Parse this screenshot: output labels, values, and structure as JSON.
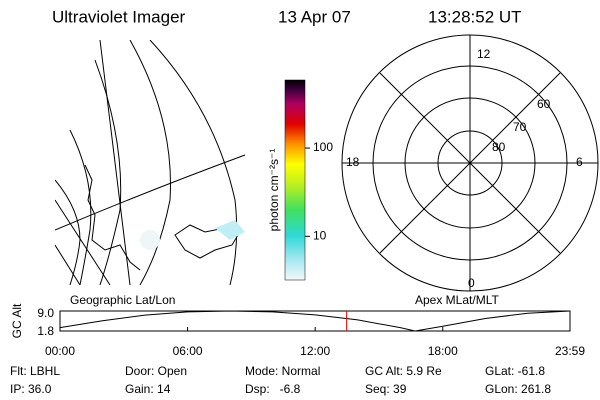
{
  "header": {
    "title": "Ultraviolet Imager",
    "date": "13 Apr 07",
    "time": "13:28:52 UT"
  },
  "map": {
    "label": "Geographic Lat/Lon"
  },
  "colorbar": {
    "label": "photon cm⁻²s⁻¹",
    "lim": [
      3.2,
      590
    ],
    "ticks": [
      10,
      100
    ],
    "log": true
  },
  "polar": {
    "label": "Apex MLat/MLT",
    "hour_labels": [
      "12",
      "18",
      "6",
      "0"
    ],
    "lat_labels": [
      "60",
      "70",
      "80"
    ]
  },
  "chart_data": {
    "type": "line",
    "ylabel": "GC Alt",
    "x": [
      0,
      2,
      4,
      6,
      8,
      10,
      12,
      14,
      16,
      16.7,
      18,
      20,
      22,
      23.98
    ],
    "values": [
      3.0,
      5.5,
      7.5,
      8.7,
      9.0,
      8.7,
      7.6,
      5.8,
      3.0,
      1.8,
      3.5,
      6.3,
      8.2,
      9.0
    ],
    "color": "#000000",
    "xlim": [
      0,
      23.983
    ],
    "xticks": [
      {
        "value": 0,
        "label": "00:00"
      },
      {
        "value": 6,
        "label": "06:00"
      },
      {
        "value": 12,
        "label": "12:00"
      },
      {
        "value": 18,
        "label": "18:00"
      },
      {
        "value": 23.983,
        "label": "23:59"
      }
    ],
    "ylim": [
      1.8,
      9.0
    ],
    "yticks": [
      1.8,
      {
        "value": 9.0,
        "label": "9.0"
      }
    ],
    "marker_x": 13.48,
    "marker_color": "#e00000"
  },
  "info": [
    [
      "Flt: LBHL",
      "Door: Open",
      "Mode: Normal",
      "GC Alt: 5.9 Re",
      "GLat: -61.8"
    ],
    [
      "IP: 36.0",
      "Gain: 14",
      "Dsp:   -6.8",
      "Seq: 39",
      "GLon: 261.8"
    ]
  ]
}
